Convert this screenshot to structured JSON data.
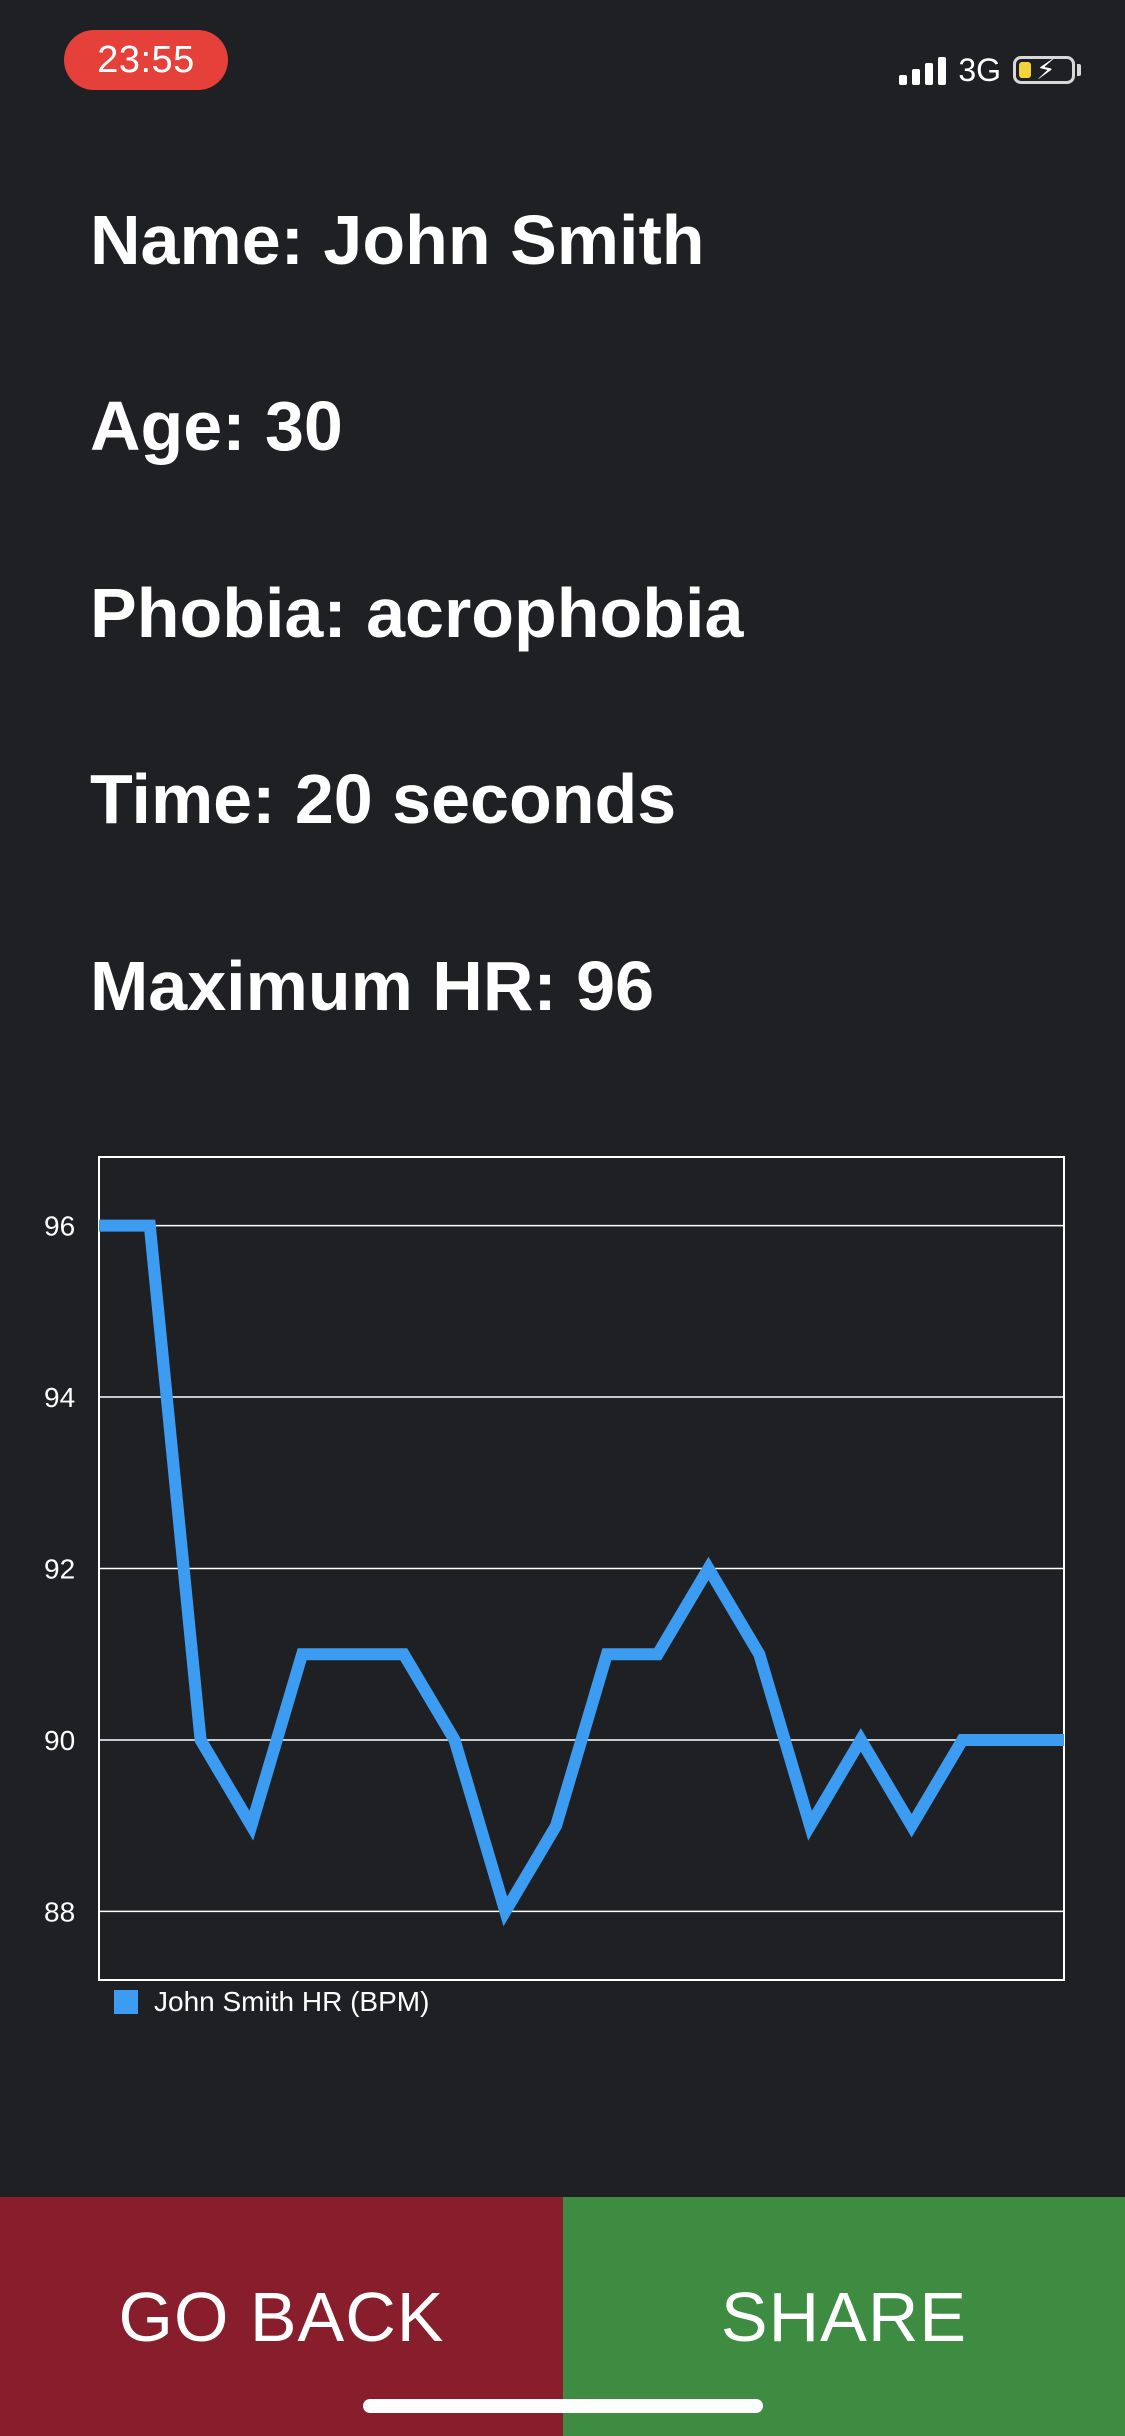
{
  "status_bar": {
    "time": "23:55",
    "network": "3G",
    "signal_bars": 4,
    "battery_level": 0.2,
    "charging": true
  },
  "info": {
    "name": "Name: John Smith",
    "age": "Age: 30",
    "phobia": "Phobia: acrophobia",
    "time": "Time: 20 seconds",
    "max_hr": "Maximum HR: 96"
  },
  "chart_data": {
    "type": "line",
    "title": "",
    "xlabel": "",
    "ylabel": "",
    "ylim": [
      87.2,
      96.8
    ],
    "yticks": [
      88,
      90,
      92,
      94,
      96
    ],
    "grid": true,
    "legend_position": "bottom-left",
    "series": [
      {
        "name": "John Smith HR (BPM)",
        "color": "#3b9cf2",
        "x": [
          0,
          1,
          2,
          3,
          4,
          5,
          6,
          7,
          8,
          9,
          10,
          11,
          12,
          13,
          14,
          15,
          16,
          17,
          18,
          19
        ],
        "values": [
          96,
          96,
          90,
          89,
          91,
          91,
          91,
          90,
          88,
          89,
          91,
          91,
          92,
          91,
          89,
          90,
          89,
          90,
          90,
          90
        ]
      }
    ]
  },
  "buttons": {
    "back_label": "GO BACK",
    "share_label": "SHARE",
    "back_color": "#881e2b",
    "share_color": "#3d8c41"
  }
}
